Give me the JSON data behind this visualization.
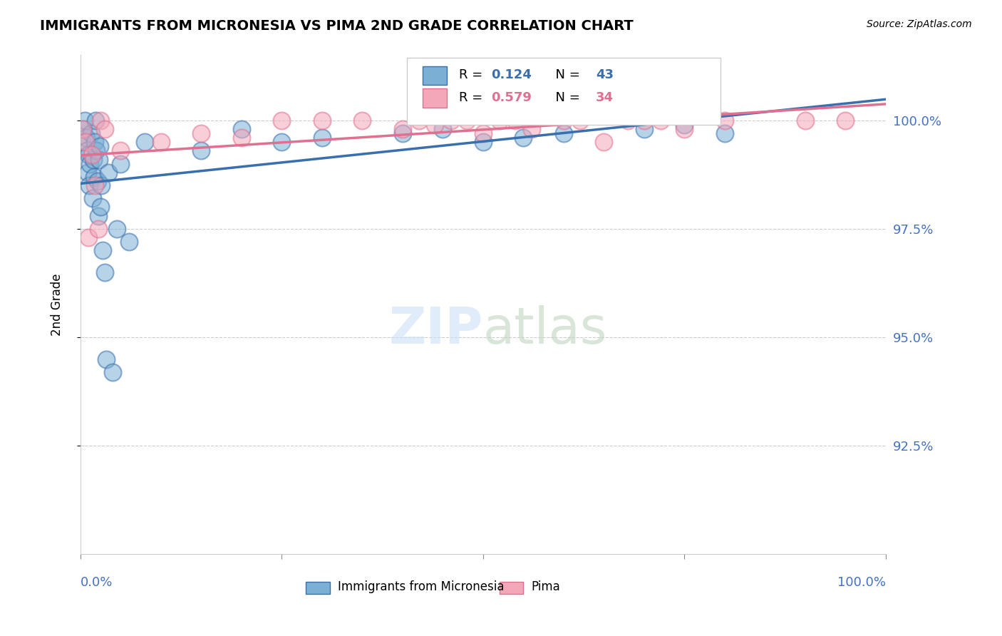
{
  "title": "IMMIGRANTS FROM MICRONESIA VS PIMA 2ND GRADE CORRELATION CHART",
  "source": "Source: ZipAtlas.com",
  "ylabel": "2nd Grade",
  "ylabel_right_ticks": [
    100.0,
    97.5,
    95.0,
    92.5
  ],
  "ylabel_right_labels": [
    "100.0%",
    "97.5%",
    "95.0%",
    "92.5%"
  ],
  "xlim": [
    0.0,
    100.0
  ],
  "ylim": [
    90.0,
    101.5
  ],
  "blue_R": 0.124,
  "blue_N": 43,
  "pink_R": 0.579,
  "pink_N": 34,
  "legend_label_blue": "Immigrants from Micronesia",
  "legend_label_pink": "Pima",
  "blue_color": "#7bafd4",
  "pink_color": "#f4a7b9",
  "blue_line_color": "#3a6fad",
  "pink_line_color": "#e07090",
  "blue_points_x": [
    0.2,
    0.4,
    0.5,
    0.7,
    0.8,
    0.9,
    1.0,
    1.1,
    1.2,
    1.3,
    1.5,
    1.6,
    1.7,
    1.8,
    1.9,
    2.0,
    2.1,
    2.2,
    2.3,
    2.4,
    2.5,
    2.6,
    2.8,
    3.0,
    3.2,
    3.5,
    4.0,
    4.5,
    5.0,
    6.0,
    8.0,
    15.0,
    20.0,
    25.0,
    30.0,
    40.0,
    45.0,
    50.0,
    55.0,
    60.0,
    70.0,
    75.0,
    80.0
  ],
  "blue_points_y": [
    99.5,
    99.8,
    100.0,
    99.6,
    99.3,
    98.8,
    99.2,
    98.5,
    99.0,
    99.7,
    98.2,
    99.1,
    98.7,
    99.5,
    100.0,
    99.3,
    98.6,
    97.8,
    99.1,
    99.4,
    98.0,
    98.5,
    97.0,
    96.5,
    94.5,
    98.8,
    94.2,
    97.5,
    99.0,
    97.2,
    99.5,
    99.3,
    99.8,
    99.5,
    99.6,
    99.7,
    99.8,
    99.5,
    99.6,
    99.7,
    99.8,
    99.9,
    99.7
  ],
  "pink_points_x": [
    0.3,
    0.6,
    1.0,
    1.4,
    1.8,
    2.2,
    2.5,
    3.0,
    5.0,
    10.0,
    15.0,
    20.0,
    25.0,
    30.0,
    35.0,
    40.0,
    42.0,
    44.0,
    46.0,
    48.0,
    50.0,
    52.0,
    54.0,
    56.0,
    60.0,
    62.0,
    65.0,
    68.0,
    70.0,
    72.0,
    75.0,
    80.0,
    90.0,
    95.0
  ],
  "pink_points_y": [
    99.8,
    99.5,
    97.3,
    99.2,
    98.5,
    97.5,
    100.0,
    99.8,
    99.3,
    99.5,
    99.7,
    99.6,
    100.0,
    100.0,
    100.0,
    99.8,
    100.0,
    99.9,
    100.0,
    100.0,
    99.7,
    100.0,
    100.0,
    99.8,
    100.0,
    100.0,
    99.5,
    100.0,
    100.0,
    100.0,
    99.8,
    100.0,
    100.0,
    100.0
  ]
}
